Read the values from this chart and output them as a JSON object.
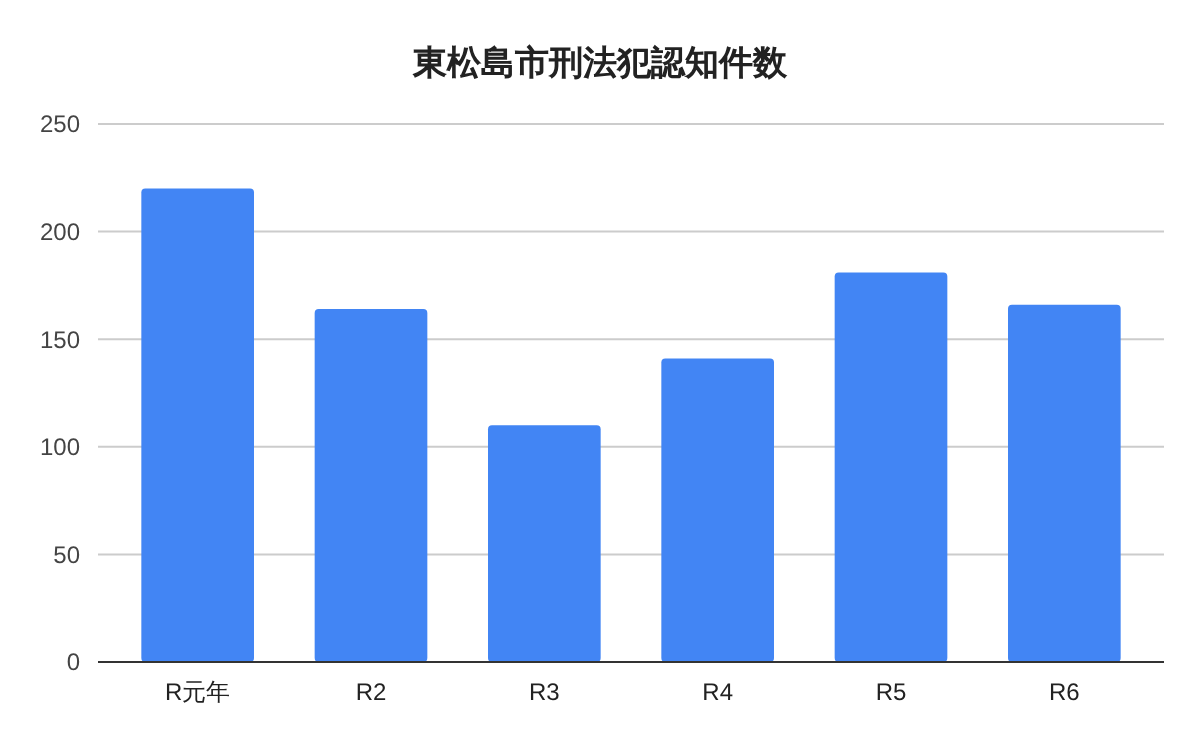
{
  "chart_data": {
    "type": "bar",
    "title": "東松島市刑法犯認知件数",
    "categories": [
      "R元年",
      "R2",
      "R3",
      "R4",
      "R5",
      "R6"
    ],
    "values": [
      220,
      164,
      110,
      141,
      181,
      166
    ],
    "color": "#4285f4",
    "ylim": [
      0,
      250
    ],
    "yticks": [
      0,
      50,
      100,
      150,
      200,
      250
    ],
    "grid": "y"
  }
}
